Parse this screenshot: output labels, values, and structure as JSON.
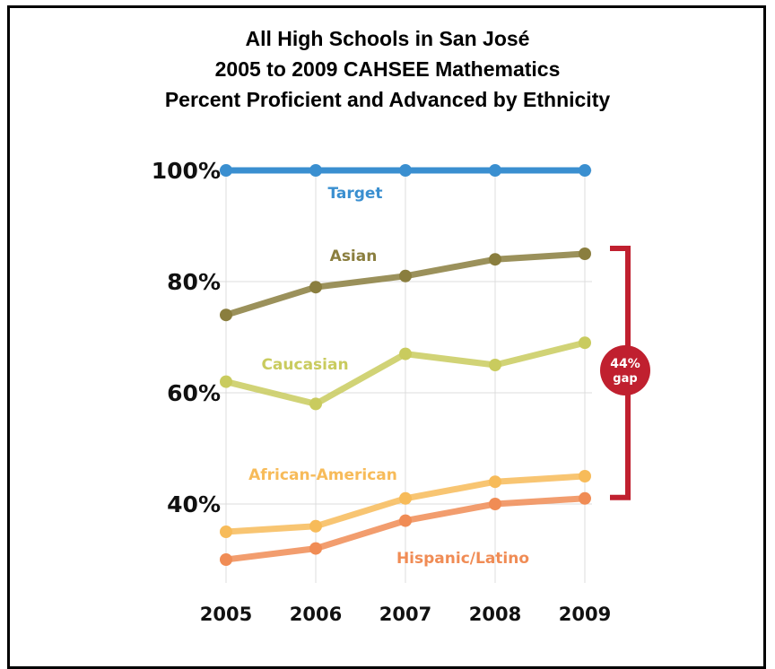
{
  "title_lines": [
    "All High Schools in San José",
    "2005 to 2009 CAHSEE Mathematics",
    "Percent Proficient and Advanced by Ethnicity"
  ],
  "chart_data": {
    "type": "line",
    "title": "All High Schools in San José 2005 to 2009 CAHSEE Mathematics Percent Proficient and Advanced by Ethnicity",
    "x": [
      "2005",
      "2006",
      "2007",
      "2008",
      "2009"
    ],
    "y_ticks": [
      "100%",
      "80%",
      "60%",
      "40%"
    ],
    "y_tick_values": [
      100,
      80,
      60,
      40
    ],
    "ylim": [
      25,
      100
    ],
    "grid": true,
    "series": [
      {
        "name": "Target",
        "values": [
          100,
          100,
          100,
          100,
          100
        ],
        "color": "#3a8fd0"
      },
      {
        "name": "Asian",
        "values": [
          74,
          79,
          81,
          84,
          85
        ],
        "color": "#8a7e3e"
      },
      {
        "name": "Caucasian",
        "values": [
          62,
          58,
          67,
          65,
          69
        ],
        "color": "#c9cb5e"
      },
      {
        "name": "African-American",
        "values": [
          35,
          36,
          41,
          44,
          45
        ],
        "color": "#f7bb59"
      },
      {
        "name": "Hispanic/Latino",
        "values": [
          30,
          32,
          37,
          40,
          41
        ],
        "color": "#f08c55"
      }
    ],
    "annotation": {
      "value_label": "44%",
      "sub_label": "gap",
      "color": "#c0202f",
      "from": 85,
      "to": 41
    }
  }
}
